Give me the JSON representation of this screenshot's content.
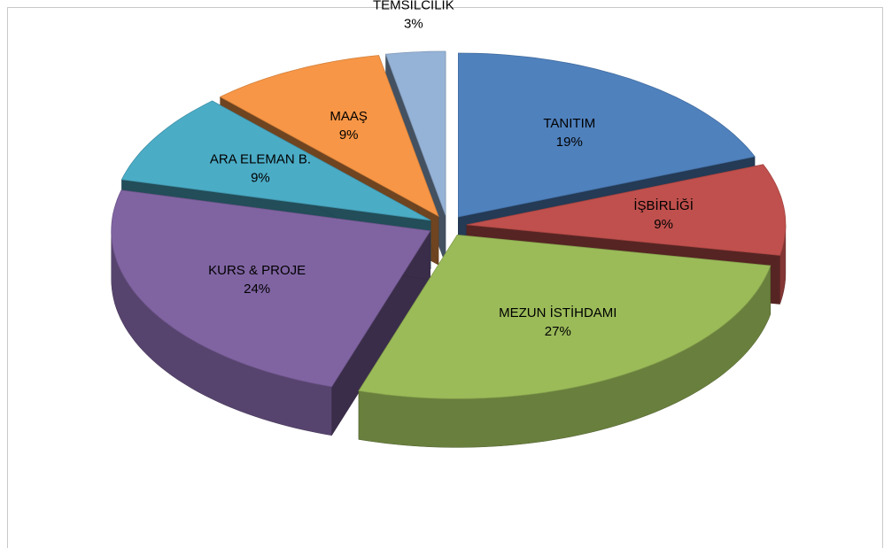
{
  "chart_data": {
    "type": "pie3d",
    "categories": [
      "TANITIM",
      "İŞBİRLİĞİ",
      "MEZUN İSTİHDAMI",
      "KURS & PROJE",
      "ARA ELEMAN B.",
      "MAAŞ",
      "TEMSİLCİLİK"
    ],
    "values": [
      19,
      9,
      27,
      24,
      9,
      9,
      3
    ],
    "value_labels": [
      "19%",
      "9%",
      "27%",
      "24%",
      "9%",
      "9%",
      "3%"
    ],
    "colors": [
      "#4f81bd",
      "#c0504d",
      "#9bbb59",
      "#8064a2",
      "#4bacc6",
      "#f79646",
      "#95b3d7"
    ]
  }
}
